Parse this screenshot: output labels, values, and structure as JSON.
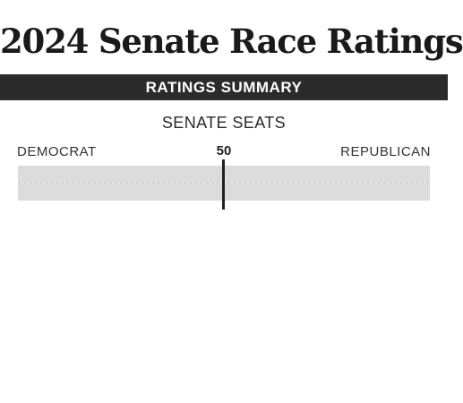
{
  "header": {
    "title": "2024 Senate Race Ratings"
  },
  "summary_bar": {
    "label": "RATINGS SUMMARY"
  },
  "seats_chart": {
    "heading": "SENATE SEATS",
    "left_label": "DEMOCRAT",
    "right_label": "REPUBLICAN",
    "midpoint_label": "50",
    "colors": {
      "track": "#dcdcdc",
      "midpoint_line": "#222222"
    }
  }
}
